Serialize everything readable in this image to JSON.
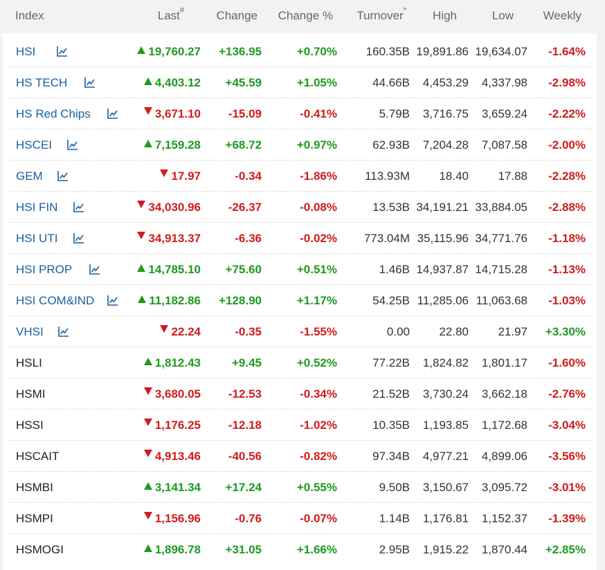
{
  "columns": {
    "index": "Index",
    "last": "Last",
    "last_sup": "#",
    "change": "Change",
    "change_pct": "Change %",
    "turnover": "Turnover",
    "turnover_sup": "*",
    "high": "High",
    "low": "Low",
    "weekly": "Weekly"
  },
  "colors": {
    "up": "#1e9a1e",
    "down": "#d11b1b",
    "link": "#1a5f9e"
  },
  "rows": [
    {
      "name": "HSI",
      "link": true,
      "dir": "up",
      "last": "19,760.27",
      "change": "+136.95",
      "pct": "+0.70%",
      "turnover": "160.35B",
      "high": "19,891.86",
      "low": "19,634.07",
      "weekly": "-1.64%",
      "weekly_dir": "down"
    },
    {
      "name": "HS TECH",
      "link": true,
      "dir": "up",
      "last": "4,403.12",
      "change": "+45.59",
      "pct": "+1.05%",
      "turnover": "44.66B",
      "high": "4,453.29",
      "low": "4,337.98",
      "weekly": "-2.98%",
      "weekly_dir": "down"
    },
    {
      "name": "HS Red Chips",
      "link": true,
      "dir": "down",
      "last": "3,671.10",
      "change": "-15.09",
      "pct": "-0.41%",
      "turnover": "5.79B",
      "high": "3,716.75",
      "low": "3,659.24",
      "weekly": "-2.22%",
      "weekly_dir": "down"
    },
    {
      "name": "HSCEI",
      "link": true,
      "dir": "up",
      "last": "7,159.28",
      "change": "+68.72",
      "pct": "+0.97%",
      "turnover": "62.93B",
      "high": "7,204.28",
      "low": "7,087.58",
      "weekly": "-2.00%",
      "weekly_dir": "down"
    },
    {
      "name": "GEM",
      "link": true,
      "dir": "down",
      "last": "17.97",
      "change": "-0.34",
      "pct": "-1.86%",
      "turnover": "113.93M",
      "high": "18.40",
      "low": "17.88",
      "weekly": "-2.28%",
      "weekly_dir": "down"
    },
    {
      "name": "HSI FIN",
      "link": true,
      "dir": "down",
      "last": "34,030.96",
      "change": "-26.37",
      "pct": "-0.08%",
      "turnover": "13.53B",
      "high": "34,191.21",
      "low": "33,884.05",
      "weekly": "-2.88%",
      "weekly_dir": "down"
    },
    {
      "name": "HSI UTI",
      "link": true,
      "dir": "down",
      "last": "34,913.37",
      "change": "-6.36",
      "pct": "-0.02%",
      "turnover": "773.04M",
      "high": "35,115.96",
      "low": "34,771.76",
      "weekly": "-1.18%",
      "weekly_dir": "down"
    },
    {
      "name": "HSI PROP",
      "link": true,
      "dir": "up",
      "last": "14,785.10",
      "change": "+75.60",
      "pct": "+0.51%",
      "turnover": "1.46B",
      "high": "14,937.87",
      "low": "14,715.28",
      "weekly": "-1.13%",
      "weekly_dir": "down"
    },
    {
      "name": "HSI COM&IND",
      "link": true,
      "dir": "up",
      "last": "11,182.86",
      "change": "+128.90",
      "pct": "+1.17%",
      "turnover": "54.25B",
      "high": "11,285.06",
      "low": "11,063.68",
      "weekly": "-1.03%",
      "weekly_dir": "down"
    },
    {
      "name": "VHSI",
      "link": true,
      "dir": "down",
      "last": "22.24",
      "change": "-0.35",
      "pct": "-1.55%",
      "turnover": "0.00",
      "high": "22.80",
      "low": "21.97",
      "weekly": "+3.30%",
      "weekly_dir": "up"
    },
    {
      "name": "HSLI",
      "link": false,
      "dir": "up",
      "last": "1,812.43",
      "change": "+9.45",
      "pct": "+0.52%",
      "turnover": "77.22B",
      "high": "1,824.82",
      "low": "1,801.17",
      "weekly": "-1.60%",
      "weekly_dir": "down"
    },
    {
      "name": "HSMI",
      "link": false,
      "dir": "down",
      "last": "3,680.05",
      "change": "-12.53",
      "pct": "-0.34%",
      "turnover": "21.52B",
      "high": "3,730.24",
      "low": "3,662.18",
      "weekly": "-2.76%",
      "weekly_dir": "down"
    },
    {
      "name": "HSSI",
      "link": false,
      "dir": "down",
      "last": "1,176.25",
      "change": "-12.18",
      "pct": "-1.02%",
      "turnover": "10.35B",
      "high": "1,193.85",
      "low": "1,172.68",
      "weekly": "-3.04%",
      "weekly_dir": "down"
    },
    {
      "name": "HSCAIT",
      "link": false,
      "dir": "down",
      "last": "4,913.46",
      "change": "-40.56",
      "pct": "-0.82%",
      "turnover": "97.34B",
      "high": "4,977.21",
      "low": "4,899.06",
      "weekly": "-3.56%",
      "weekly_dir": "down"
    },
    {
      "name": "HSMBI",
      "link": false,
      "dir": "up",
      "last": "3,141.34",
      "change": "+17.24",
      "pct": "+0.55%",
      "turnover": "9.50B",
      "high": "3,150.67",
      "low": "3,095.72",
      "weekly": "-3.01%",
      "weekly_dir": "down"
    },
    {
      "name": "HSMPI",
      "link": false,
      "dir": "down",
      "last": "1,156.96",
      "change": "-0.76",
      "pct": "-0.07%",
      "turnover": "1.14B",
      "high": "1,176.81",
      "low": "1,152.37",
      "weekly": "-1.39%",
      "weekly_dir": "down"
    },
    {
      "name": "HSMOGI",
      "link": false,
      "dir": "up",
      "last": "1,896.78",
      "change": "+31.05",
      "pct": "+1.66%",
      "turnover": "2.95B",
      "high": "1,915.22",
      "low": "1,870.44",
      "weekly": "+2.85%",
      "weekly_dir": "up"
    }
  ]
}
